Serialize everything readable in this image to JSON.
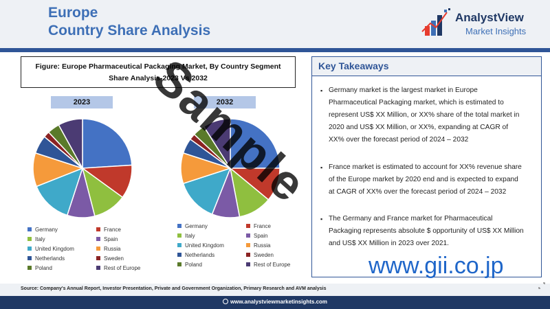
{
  "header": {
    "title_line1": "Europe",
    "title_line2": "Country Share Analysis",
    "logo_name": "AnalystView",
    "logo_tagline": "Market Insights"
  },
  "figure": {
    "title_line1": "Figure: Europe Pharmaceutical Packaging Market, By Country Segment",
    "title_line2": "Share Analysis-2023 Vs 2032"
  },
  "chart_data": [
    {
      "type": "pie",
      "title": "2023",
      "categories": [
        "Germany",
        "France",
        "Italy",
        "Spain",
        "United Kingdom",
        "Russia",
        "Netherlands",
        "Sweden",
        "Poland",
        "Rest of Europe"
      ],
      "values": [
        24,
        11,
        11,
        9,
        14,
        11,
        6,
        2,
        4,
        8
      ],
      "legend": "bottom",
      "colors": [
        "#4472c4",
        "#c0392b",
        "#8fbf3f",
        "#7b5aa6",
        "#3fa9c9",
        "#f59a3b",
        "#2f5597",
        "#8b2323",
        "#5a7a2a",
        "#4b3b73"
      ]
    },
    {
      "type": "pie",
      "title": "2032",
      "categories": [
        "Germany",
        "France",
        "Italy",
        "Spain",
        "United Kingdom",
        "Russia",
        "Netherlands",
        "Sweden",
        "Poland",
        "Rest of Europe"
      ],
      "values": [
        25,
        11,
        11,
        9,
        14,
        10,
        5,
        2,
        4,
        9
      ],
      "legend": "bottom",
      "colors": [
        "#4472c4",
        "#c0392b",
        "#8fbf3f",
        "#7b5aa6",
        "#3fa9c9",
        "#f59a3b",
        "#2f5597",
        "#8b2323",
        "#5a7a2a",
        "#4b3b73"
      ]
    }
  ],
  "takeaways": {
    "title": "Key Takeaways",
    "bullets": [
      {
        "lines": [
          "Germany market is the largest market in Europe",
          "Pharmaceutical Packaging market, which is estimated to",
          "represent US$ XX Million, or XX% share of the total market in",
          "2020 and US$ XX Million, or XX%, expanding at CAGR of",
          "XX% over the forecast period of 2024 – 2032"
        ]
      },
      {
        "lines": [
          "France market is estimated to account for XX% revenue share",
          "of the Europe market by 2020 end and is expected to expand",
          "at CAGR of XX% over the forecast period of 2024 – 2032"
        ]
      },
      {
        "lines": [
          "The Germany and France market for Pharmaceutical",
          "Packaging represents absolute $ opportunity of US$ XX Million",
          "and US$ XX Million in 2023 over 2021."
        ]
      }
    ]
  },
  "source": "Source: Company's Annual Report, Investor Presentation, Private and Government Organization, Primary Research and AVM analysis",
  "footer": "www.analystviewmarketinsights.com",
  "watermark": "www.gii.co.jp",
  "stamp": "Sample"
}
